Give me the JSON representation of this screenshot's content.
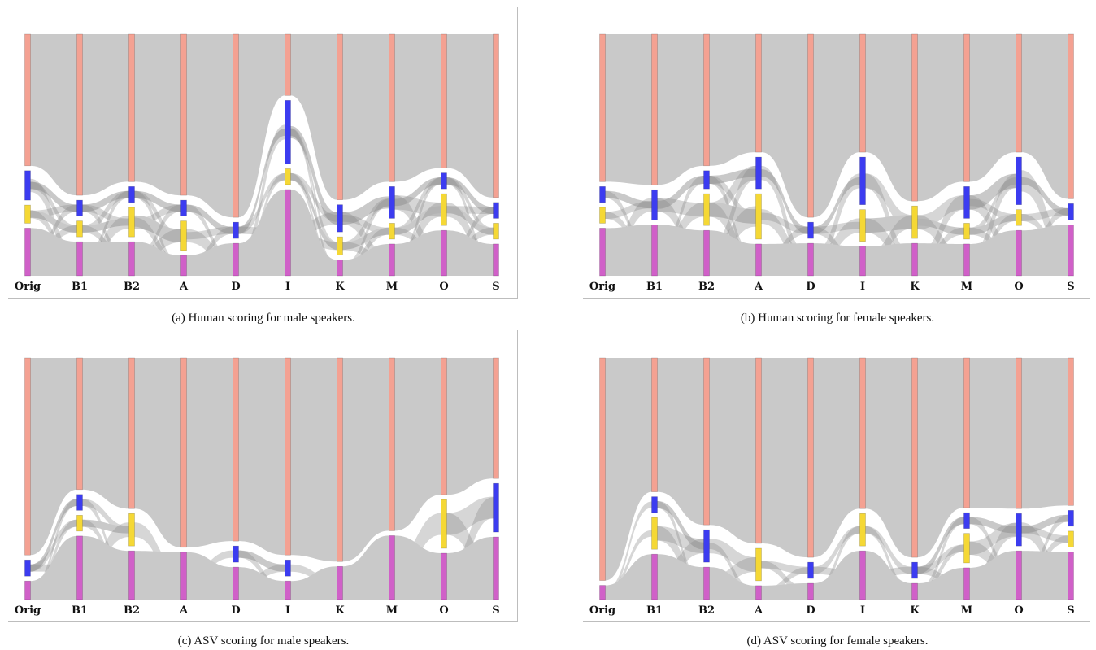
{
  "colors": {
    "top": "#f4a192",
    "blue": "#3c3cf0",
    "yellow": "#f5d835",
    "magenta": "#d060c8",
    "flow": "#c9c9c9",
    "flow_dark": "#8a8a8a"
  },
  "chart_data": [
    {
      "type": "sankey",
      "caption": "(a) Human scoring for male speakers.",
      "columns": [
        "Orig",
        "B1",
        "B2",
        "A",
        "D",
        "I",
        "K",
        "M",
        "O",
        "S"
      ],
      "category_order": [
        "top",
        "blue",
        "yellow",
        "magenta"
      ],
      "shares": [
        [
          58,
          13,
          8,
          21
        ],
        [
          71,
          7,
          7,
          15
        ],
        [
          65,
          7,
          13,
          15
        ],
        [
          71,
          7,
          13,
          9
        ],
        [
          79,
          7,
          0,
          14
        ],
        [
          27,
          28,
          7,
          38
        ],
        [
          73,
          12,
          8,
          7
        ],
        [
          65,
          14,
          7,
          14
        ],
        [
          59,
          7,
          14,
          20
        ],
        [
          72,
          7,
          7,
          14
        ]
      ]
    },
    {
      "type": "sankey",
      "caption": "(b) Human scoring for female speakers.",
      "columns": [
        "Orig",
        "B1",
        "B2",
        "A",
        "D",
        "I",
        "K",
        "M",
        "O",
        "S"
      ],
      "category_order": [
        "top",
        "blue",
        "yellow",
        "magenta"
      ],
      "shares": [
        [
          65,
          7,
          7,
          21
        ],
        [
          65,
          13,
          0,
          22
        ],
        [
          58,
          8,
          14,
          20
        ],
        [
          52,
          14,
          20,
          14
        ],
        [
          79,
          7,
          0,
          14
        ],
        [
          52,
          21,
          14,
          13
        ],
        [
          72,
          0,
          14,
          14
        ],
        [
          65,
          14,
          7,
          14
        ],
        [
          52,
          21,
          7,
          20
        ],
        [
          71,
          7,
          0,
          22
        ]
      ]
    },
    {
      "type": "sankey",
      "caption": "(c) ASV scoring for male speakers.",
      "columns": [
        "Orig",
        "B1",
        "B2",
        "A",
        "D",
        "I",
        "K",
        "M",
        "O",
        "S"
      ],
      "category_order": [
        "top",
        "blue",
        "yellow",
        "magenta"
      ],
      "shares": [
        [
          85,
          7,
          0,
          8
        ],
        [
          58,
          7,
          7,
          28
        ],
        [
          65,
          0,
          14,
          21
        ],
        [
          80,
          0,
          0,
          20
        ],
        [
          79,
          7,
          0,
          14
        ],
        [
          85,
          7,
          0,
          8
        ],
        [
          86,
          0,
          0,
          14
        ],
        [
          73,
          0,
          0,
          27
        ],
        [
          59,
          0,
          21,
          20
        ],
        [
          52,
          21,
          0,
          27
        ]
      ]
    },
    {
      "type": "sankey",
      "caption": "(d) ASV scoring for female speakers.",
      "columns": [
        "Orig",
        "B1",
        "B2",
        "A",
        "D",
        "I",
        "K",
        "M",
        "O",
        "S"
      ],
      "category_order": [
        "top",
        "blue",
        "yellow",
        "magenta"
      ],
      "shares": [
        [
          94,
          0,
          0,
          6
        ],
        [
          59,
          7,
          14,
          20
        ],
        [
          72,
          14,
          0,
          14
        ],
        [
          80,
          0,
          14,
          6
        ],
        [
          86,
          7,
          0,
          7
        ],
        [
          65,
          0,
          14,
          21
        ],
        [
          86,
          7,
          0,
          7
        ],
        [
          66,
          7,
          13,
          14
        ],
        [
          65,
          14,
          0,
          21
        ],
        [
          65,
          7,
          7,
          21
        ]
      ]
    }
  ]
}
